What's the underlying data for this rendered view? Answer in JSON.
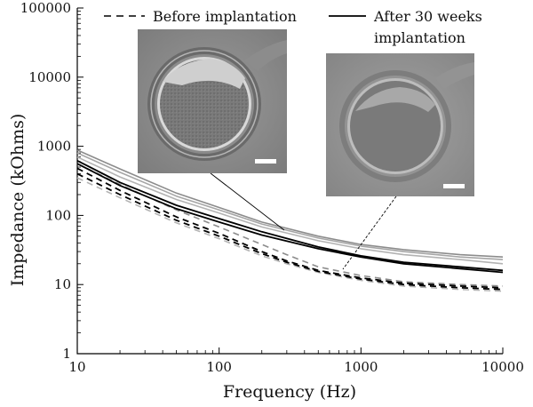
{
  "chart_data": {
    "type": "line",
    "xlabel": "Frequency (Hz)",
    "ylabel": "Impedance (kOhms)",
    "xscale": "log",
    "yscale": "log",
    "xlim": [
      10,
      10000
    ],
    "ylim": [
      1,
      100000
    ],
    "x_ticks": [
      "10",
      "100",
      "1000",
      "10000"
    ],
    "y_ticks": [
      "1",
      "10",
      "100",
      "1000",
      "10000",
      "100000"
    ],
    "grid": false,
    "legend": {
      "placement": "top",
      "entries": [
        {
          "label": "Before implantation",
          "style": "dashed"
        },
        {
          "label": "After 30 weeks implantation",
          "label_lines": [
            "After 30 weeks",
            "implantation"
          ],
          "style": "solid"
        }
      ]
    },
    "series": [
      {
        "group": "after",
        "style": "solid",
        "color": "#000000",
        "x": [
          10,
          20,
          50,
          100,
          200,
          500,
          1000,
          2000,
          5000,
          10000
        ],
        "y": [
          620,
          300,
          140,
          90,
          58,
          35,
          26,
          21,
          18,
          16
        ]
      },
      {
        "group": "after",
        "style": "solid",
        "color": "#000000",
        "x": [
          10,
          20,
          50,
          100,
          200,
          500,
          1000,
          2000,
          5000,
          10000
        ],
        "y": [
          560,
          270,
          125,
          80,
          52,
          33,
          25,
          20,
          17,
          15
        ]
      },
      {
        "group": "after",
        "style": "solid",
        "color": "#8c8c8c",
        "x": [
          10,
          20,
          50,
          100,
          200,
          500,
          1000,
          2000,
          5000,
          10000
        ],
        "y": [
          880,
          470,
          210,
          130,
          80,
          50,
          38,
          32,
          27,
          25
        ]
      },
      {
        "group": "after",
        "style": "solid",
        "color": "#a6a6a6",
        "x": [
          10,
          20,
          50,
          100,
          200,
          500,
          1000,
          2000,
          5000,
          10000
        ],
        "y": [
          800,
          420,
          190,
          120,
          75,
          47,
          36,
          30,
          25,
          23
        ]
      },
      {
        "group": "after",
        "style": "solid",
        "color": "#b3b3b3",
        "x": [
          10,
          20,
          50,
          100,
          200,
          500,
          1000,
          2000,
          5000,
          10000
        ],
        "y": [
          700,
          360,
          170,
          108,
          68,
          43,
          33,
          27,
          23,
          20
        ]
      },
      {
        "group": "before",
        "style": "dashed",
        "color": "#000000",
        "x": [
          10,
          20,
          50,
          100,
          200,
          300,
          500,
          1000,
          2000,
          5000,
          10000
        ],
        "y": [
          480,
          230,
          95,
          55,
          30,
          22,
          16,
          12.5,
          10.5,
          9.5,
          9.0
        ]
      },
      {
        "group": "before",
        "style": "dashed",
        "color": "#000000",
        "x": [
          10,
          20,
          50,
          100,
          200,
          300,
          500,
          1000,
          2000,
          5000,
          10000
        ],
        "y": [
          400,
          200,
          85,
          50,
          28,
          21,
          15.5,
          12,
          10,
          9,
          8.5
        ]
      },
      {
        "group": "before",
        "style": "dashed",
        "color": "#8c8c8c",
        "x": [
          10,
          20,
          50,
          100,
          200,
          300,
          500,
          1000,
          2000,
          5000,
          10000
        ],
        "y": [
          560,
          280,
          120,
          68,
          38,
          27,
          18,
          13.5,
          11,
          10,
          9.5
        ]
      },
      {
        "group": "before",
        "style": "dashed",
        "color": "#b3b3b3",
        "x": [
          10,
          20,
          50,
          100,
          200,
          300,
          500,
          1000,
          2000,
          5000,
          10000
        ],
        "y": [
          350,
          180,
          78,
          46,
          26,
          20,
          15,
          11.5,
          9.5,
          8.5,
          8.0
        ]
      }
    ],
    "insets": [
      {
        "name": "before-implantation-micrograph",
        "points_to": {
          "x": 300,
          "y": 65
        }
      },
      {
        "name": "after-implantation-micrograph",
        "points_to": {
          "x": 700,
          "y": 16
        }
      }
    ]
  }
}
